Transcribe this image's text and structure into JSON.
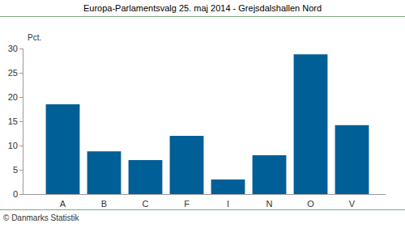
{
  "chart_data": {
    "type": "bar",
    "title": "Europa-Parlamentsvalg 25. maj 2014 - Grejsdalshallen Nord",
    "y_label": "Pct.",
    "categories": [
      "A",
      "B",
      "C",
      "F",
      "I",
      "N",
      "O",
      "V"
    ],
    "values": [
      18.5,
      8.8,
      7.0,
      12.0,
      3.0,
      8.0,
      28.8,
      14.2
    ],
    "color": "#005f96",
    "ylim": [
      0,
      30
    ],
    "yticks": [
      0,
      5,
      10,
      15,
      20,
      25,
      30
    ],
    "grid": false,
    "annotations": [
      "© Danmarks Statistik"
    ]
  }
}
